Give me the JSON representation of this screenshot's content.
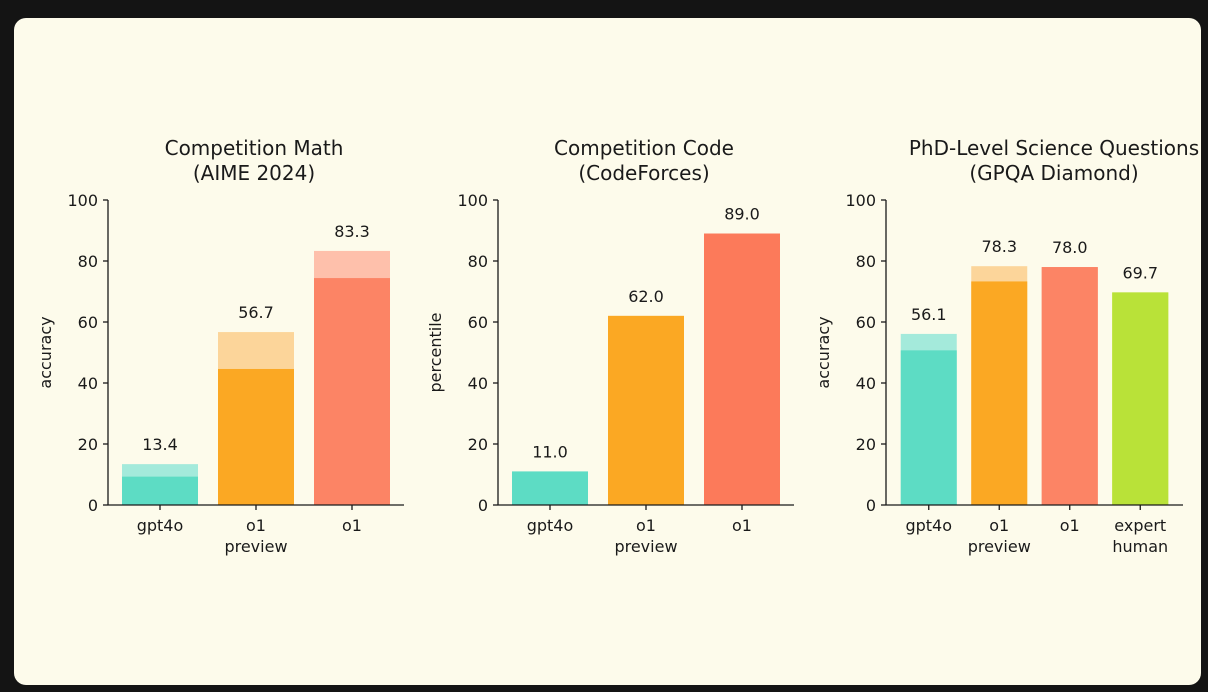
{
  "chart_data": [
    {
      "type": "bar",
      "title": [
        "Competition Math",
        "(AIME 2024)"
      ],
      "ylabel": "accuracy",
      "ylim": [
        0,
        100
      ],
      "yticks": [
        0,
        20,
        40,
        60,
        80,
        100
      ],
      "categories": [
        [
          "gpt4o"
        ],
        [
          "o1",
          "preview"
        ],
        [
          "o1"
        ]
      ],
      "values": [
        13.4,
        56.7,
        83.3
      ],
      "value_labels": [
        "13.4",
        "56.7",
        "83.3"
      ],
      "solid_values": [
        9.3,
        44.6,
        74.4
      ],
      "colors": [
        "#5ddcc4",
        "#fba823",
        "#fc8465"
      ],
      "light_colors": [
        "#a4eadb",
        "#fcd59a",
        "#fec0ab"
      ]
    },
    {
      "type": "bar",
      "title": [
        "Competition Code",
        "(CodeForces)"
      ],
      "ylabel": "percentile",
      "ylim": [
        0,
        100
      ],
      "yticks": [
        0,
        20,
        40,
        60,
        80,
        100
      ],
      "categories": [
        [
          "gpt4o"
        ],
        [
          "o1",
          "preview"
        ],
        [
          "o1"
        ]
      ],
      "values": [
        11.0,
        62.0,
        89.0
      ],
      "value_labels": [
        "11.0",
        "62.0",
        "89.0"
      ],
      "solid_values": [
        11.0,
        62.0,
        89.0
      ],
      "colors": [
        "#5ddcc4",
        "#fba823",
        "#fc7a5a"
      ],
      "light_colors": [
        "#5ddcc4",
        "#fba823",
        "#fc7a5a"
      ]
    },
    {
      "type": "bar",
      "title": [
        "PhD-Level Science Questions",
        "(GPQA Diamond)"
      ],
      "ylabel": "accuracy",
      "ylim": [
        0,
        100
      ],
      "yticks": [
        0,
        20,
        40,
        60,
        80,
        100
      ],
      "categories": [
        [
          "gpt4o"
        ],
        [
          "o1",
          "preview"
        ],
        [
          "o1"
        ],
        [
          "expert",
          "human"
        ]
      ],
      "values": [
        56.1,
        78.3,
        78.0,
        69.7
      ],
      "value_labels": [
        "56.1",
        "78.3",
        "78.0",
        "69.7"
      ],
      "solid_values": [
        50.7,
        73.3,
        78.0,
        69.7
      ],
      "colors": [
        "#5ddcc4",
        "#fba823",
        "#fc8465",
        "#b9e238"
      ],
      "light_colors": [
        "#a4eadb",
        "#fcd59a",
        "#fc8465",
        "#b9e238"
      ]
    }
  ]
}
